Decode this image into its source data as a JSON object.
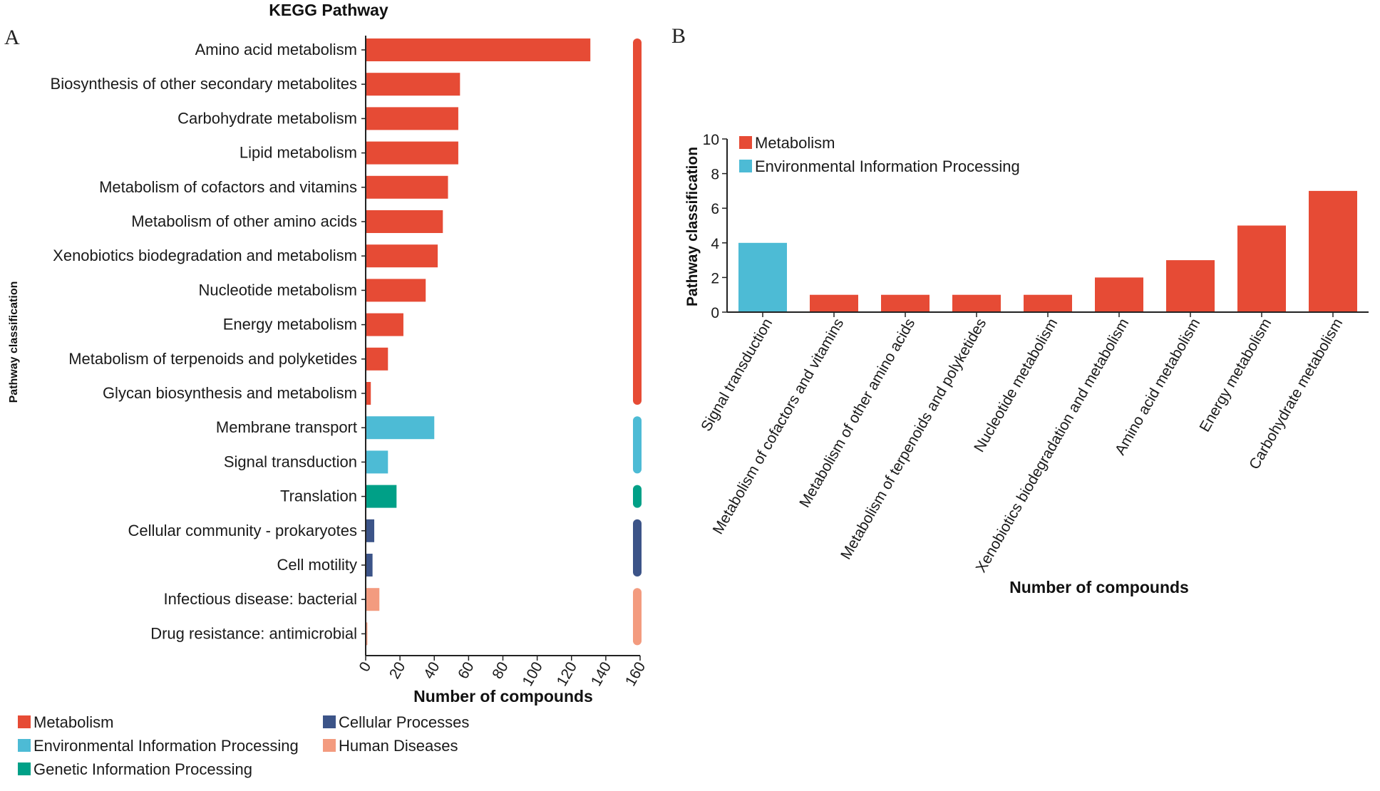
{
  "chart_data": [
    {
      "panel": "A",
      "type": "bar",
      "orientation": "horizontal",
      "title": "KEGG Pathway",
      "xlabel": "Number of compounds",
      "ylabel": "Pathway classification",
      "xlim": [
        0,
        160
      ],
      "xticks": [
        0,
        20,
        40,
        60,
        80,
        100,
        120,
        140,
        160
      ],
      "categories": [
        "Amino acid metabolism",
        "Biosynthesis of other secondary metabolites",
        "Carbohydrate metabolism",
        "Lipid metabolism",
        "Metabolism of cofactors and vitamins",
        "Metabolism of other amino acids",
        "Xenobiotics biodegradation and metabolism",
        "Nucleotide metabolism",
        "Energy metabolism",
        "Metabolism of terpenoids and polyketides",
        "Glycan biosynthesis and metabolism",
        "Membrane transport",
        "Signal transduction",
        "Translation",
        "Cellular community - prokaryotes",
        "Cell motility",
        "Infectious disease: bacterial",
        "Drug resistance: antimicrobial"
      ],
      "values": [
        131,
        55,
        54,
        54,
        48,
        45,
        42,
        35,
        22,
        13,
        3,
        40,
        13,
        18,
        5,
        4,
        8,
        1
      ],
      "groups": [
        "Metabolism",
        "Metabolism",
        "Metabolism",
        "Metabolism",
        "Metabolism",
        "Metabolism",
        "Metabolism",
        "Metabolism",
        "Metabolism",
        "Metabolism",
        "Metabolism",
        "Environmental Information Processing",
        "Environmental Information Processing",
        "Genetic Information Processing",
        "Cellular Processes",
        "Cellular Processes",
        "Human Diseases",
        "Human Diseases"
      ],
      "legend": [
        {
          "label": "Metabolism",
          "color": "#E64B35"
        },
        {
          "label": "Cellular Processes",
          "color": "#3C5488"
        },
        {
          "label": "Environmental Information Processing",
          "color": "#4DBBD5"
        },
        {
          "label": "Human Diseases",
          "color": "#F39B7F"
        },
        {
          "label": "Genetic Information Processing",
          "color": "#00A087"
        }
      ]
    },
    {
      "panel": "B",
      "type": "bar",
      "orientation": "vertical",
      "xlabel": "Number of compounds",
      "ylabel": "Pathway classification",
      "ylim": [
        0,
        10
      ],
      "yticks": [
        0,
        2,
        4,
        6,
        8,
        10
      ],
      "categories": [
        "Signal transduction",
        "Metabolism of cofactors and vitamins",
        "Metabolism of other amino acids",
        "Metabolism of terpenoids and polyketides",
        "Nucleotide metabolism",
        "Xenobiotics biodegradation and metabolism",
        "Amino acid metabolism",
        "Energy metabolism",
        "Carbohydrate metabolism"
      ],
      "values": [
        4,
        1,
        1,
        1,
        1,
        2,
        3,
        5,
        7
      ],
      "groups": [
        "Environmental Information Processing",
        "Metabolism",
        "Metabolism",
        "Metabolism",
        "Metabolism",
        "Metabolism",
        "Metabolism",
        "Metabolism",
        "Metabolism"
      ],
      "legend": [
        {
          "label": "Metabolism",
          "color": "#E64B35"
        },
        {
          "label": "Environmental Information Processing",
          "color": "#4DBBD5"
        }
      ]
    }
  ],
  "panel_labels": {
    "a": "A",
    "b": "B"
  }
}
